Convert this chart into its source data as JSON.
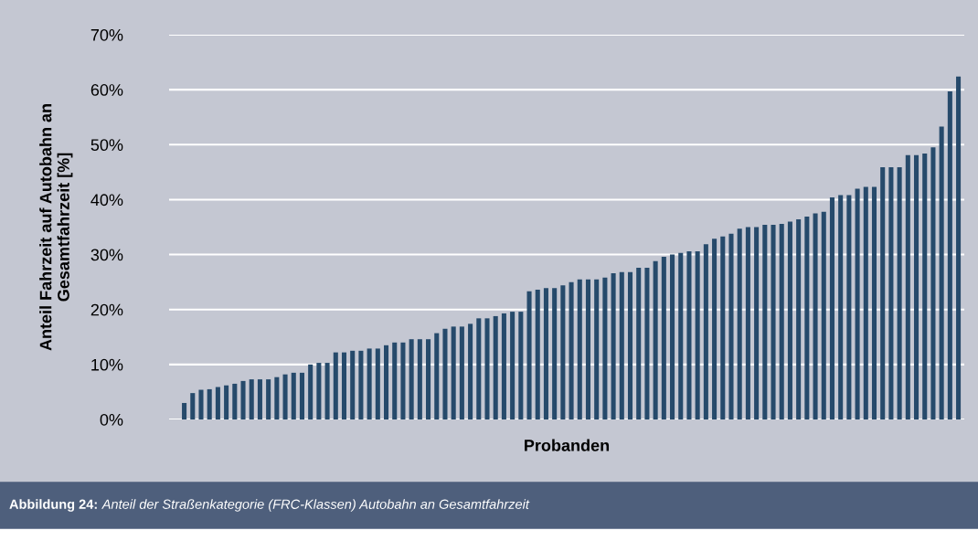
{
  "chart_data": {
    "type": "bar",
    "xlabel": "Probanden",
    "ylabel": "Anteil Fahrzeit auf Autobahn an\nGesamtfahrzeit [%]",
    "categories": [
      null,
      null,
      null,
      null,
      null,
      null,
      null,
      null,
      null,
      null,
      null,
      null,
      null,
      null,
      null,
      null,
      null,
      null,
      null,
      null,
      null,
      null,
      null,
      null,
      null,
      null,
      null,
      null,
      null,
      null,
      null,
      null,
      null,
      null,
      null,
      null,
      null,
      null,
      null,
      null,
      null,
      null,
      null,
      null,
      null,
      null,
      null,
      null,
      null,
      null,
      null,
      null,
      null,
      null,
      null,
      null,
      null,
      null,
      null,
      null,
      null,
      null,
      null,
      null,
      null,
      null,
      null,
      null,
      null,
      null,
      null,
      null,
      null,
      null,
      null,
      null,
      null,
      null,
      null,
      null,
      null,
      null,
      null,
      null,
      null,
      null,
      null,
      null,
      null,
      null,
      null,
      null,
      null
    ],
    "values": [
      3,
      4.8,
      5.4,
      5.5,
      5.9,
      6.2,
      6.5,
      7,
      7.3,
      7.3,
      7.3,
      7.7,
      8.2,
      8.5,
      8.5,
      10,
      10.3,
      10.3,
      12.2,
      12.2,
      12.5,
      12.5,
      12.9,
      12.9,
      13.5,
      14,
      14,
      14.6,
      14.6,
      14.6,
      15.7,
      16.5,
      16.9,
      16.9,
      17.4,
      18.4,
      18.4,
      18.8,
      19.3,
      19.6,
      19.6,
      23.3,
      23.6,
      23.9,
      23.9,
      24.4,
      25,
      25.5,
      25.5,
      25.5,
      25.8,
      26.6,
      26.8,
      26.8,
      27.6,
      27.6,
      28.8,
      29.6,
      30,
      30.3,
      30.6,
      30.6,
      31.9,
      32.9,
      33.3,
      33.8,
      34.7,
      35,
      35,
      35.4,
      35.4,
      35.6,
      36,
      36.4,
      36.9,
      37.5,
      37.8,
      40.4,
      40.8,
      40.8,
      42,
      42.3,
      42.3,
      45.9,
      45.9,
      45.9,
      48.1,
      48.1,
      48.4,
      49.5,
      53.3,
      59.7,
      62.4
    ],
    "color": "#264a6b",
    "ylim": [
      0,
      70
    ],
    "yticks": [
      {
        "value": 0,
        "label": "0%"
      },
      {
        "value": 10,
        "label": "10%"
      },
      {
        "value": 20,
        "label": "20%"
      },
      {
        "value": 30,
        "label": "30%"
      },
      {
        "value": 40,
        "label": "40%"
      },
      {
        "value": 50,
        "label": "50%"
      },
      {
        "value": 60,
        "label": "60%"
      },
      {
        "value": 70,
        "label": "70%"
      }
    ],
    "grid": "y",
    "annotations": [
      "Abbildung 24: Anteil der Straßenkategorie (FRC-Klassen) Autobahn an Gesamtfahrzeit"
    ]
  }
}
